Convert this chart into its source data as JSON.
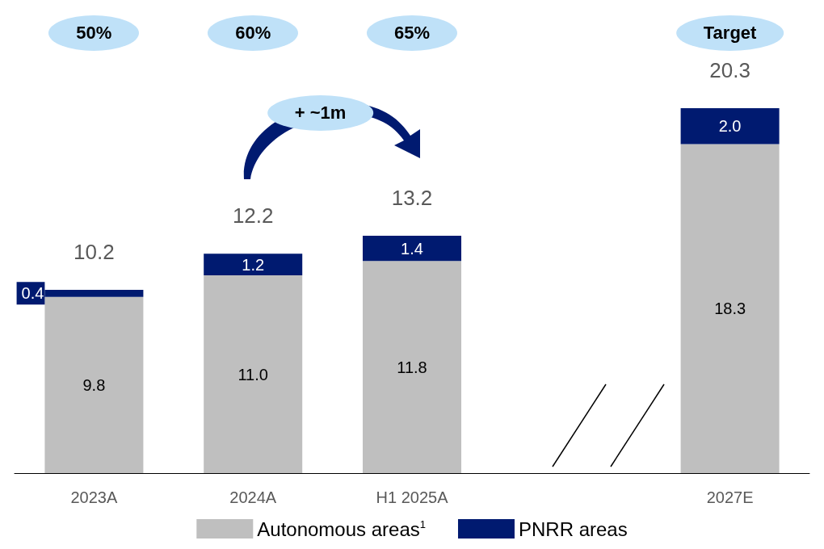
{
  "chart_data": {
    "type": "bar",
    "stacked": true,
    "legend": "bottom",
    "categories": [
      "2023A",
      "2024A",
      "H1 2025A",
      null,
      "2027E"
    ],
    "series": [
      {
        "name": "Autonomous areas$^{1}$",
        "color": "#bfbfbf",
        "values": [
          9.8,
          11.0,
          11.8,
          null,
          18.3
        ],
        "value_labels": [
          "9.8",
          "11.0",
          "11.8",
          null,
          "18.3"
        ]
      },
      {
        "name": "PNRR areas",
        "color": "#001a70",
        "values": [
          0.4,
          1.2,
          1.4,
          null,
          2.0
        ],
        "value_labels": [
          "0.4",
          "1.2",
          "1.4",
          null,
          "2.0"
        ]
      }
    ],
    "totals": [
      "10.2",
      "12.2",
      "13.2",
      null,
      "20.3"
    ],
    "annotations": [
      "50%",
      "60%",
      "65%",
      "Target",
      "+ ~1m"
    ]
  }
}
